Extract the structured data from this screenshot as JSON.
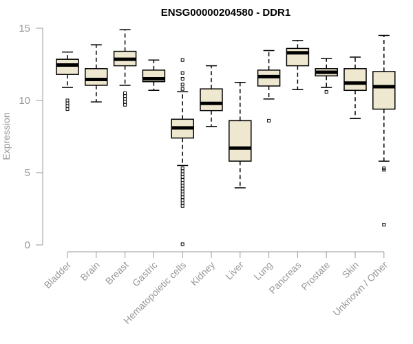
{
  "chart_data": {
    "type": "boxplot",
    "title": "ENSG00000204580 - DDR1",
    "xlabel": "",
    "ylabel": "Expression",
    "ylim": [
      0,
      15
    ],
    "yticks": [
      0,
      5,
      10,
      15
    ],
    "categories": [
      "Bladder",
      "Brain",
      "Breast",
      "Gastric",
      "Hematopoietic cells",
      "Kidney",
      "Liver",
      "Lung",
      "Pancreas",
      "Prostate",
      "Skin",
      "Unknown / Other"
    ],
    "boxes": [
      {
        "name": "Bladder",
        "whisker_low": 10.9,
        "q1": 11.8,
        "median": 12.45,
        "q3": 12.85,
        "whisker_high": 13.35,
        "outliers": [
          10.0,
          9.8,
          9.6,
          9.4
        ]
      },
      {
        "name": "Brain",
        "whisker_low": 9.9,
        "q1": 11.05,
        "median": 11.45,
        "q3": 12.2,
        "whisker_high": 13.85,
        "outliers": []
      },
      {
        "name": "Breast",
        "whisker_low": 11.05,
        "q1": 12.4,
        "median": 12.85,
        "q3": 13.4,
        "whisker_high": 14.9,
        "outliers": [
          10.5,
          10.3,
          10.1,
          9.9,
          9.7
        ]
      },
      {
        "name": "Gastric",
        "whisker_low": 10.7,
        "q1": 11.3,
        "median": 11.5,
        "q3": 12.1,
        "whisker_high": 12.8,
        "outliers": []
      },
      {
        "name": "Hematopoietic cells",
        "whisker_low": 5.5,
        "q1": 7.4,
        "median": 8.1,
        "q3": 8.7,
        "whisker_high": 10.6,
        "outliers": [
          12.8,
          11.9,
          11.5,
          11.1,
          10.8,
          5.3,
          5.1,
          4.9,
          4.7,
          4.5,
          4.3,
          4.1,
          3.9,
          3.7,
          3.5,
          3.3,
          3.1,
          2.9,
          2.7,
          0.05
        ]
      },
      {
        "name": "Kidney",
        "whisker_low": 8.2,
        "q1": 9.3,
        "median": 9.8,
        "q3": 10.8,
        "whisker_high": 12.4,
        "outliers": []
      },
      {
        "name": "Liver",
        "whisker_low": 3.95,
        "q1": 5.8,
        "median": 6.7,
        "q3": 8.6,
        "whisker_high": 11.25,
        "outliers": []
      },
      {
        "name": "Lung",
        "whisker_low": 10.1,
        "q1": 11.0,
        "median": 11.65,
        "q3": 12.1,
        "whisker_high": 13.45,
        "outliers": [
          8.6
        ]
      },
      {
        "name": "Pancreas",
        "whisker_low": 10.75,
        "q1": 12.4,
        "median": 13.3,
        "q3": 13.6,
        "whisker_high": 14.15,
        "outliers": []
      },
      {
        "name": "Prostate",
        "whisker_low": 10.9,
        "q1": 11.7,
        "median": 11.95,
        "q3": 12.2,
        "whisker_high": 12.9,
        "outliers": [
          10.6
        ]
      },
      {
        "name": "Skin",
        "whisker_low": 8.75,
        "q1": 10.7,
        "median": 11.2,
        "q3": 12.2,
        "whisker_high": 13.0,
        "outliers": []
      },
      {
        "name": "Unknown / Other",
        "whisker_low": 5.8,
        "q1": 9.4,
        "median": 10.95,
        "q3": 12.0,
        "whisker_high": 14.5,
        "outliers": [
          5.3,
          5.2,
          1.4
        ]
      }
    ],
    "box_fill": "#efe8d0",
    "box_stroke": "#000000",
    "grid": false,
    "legend": "none"
  }
}
